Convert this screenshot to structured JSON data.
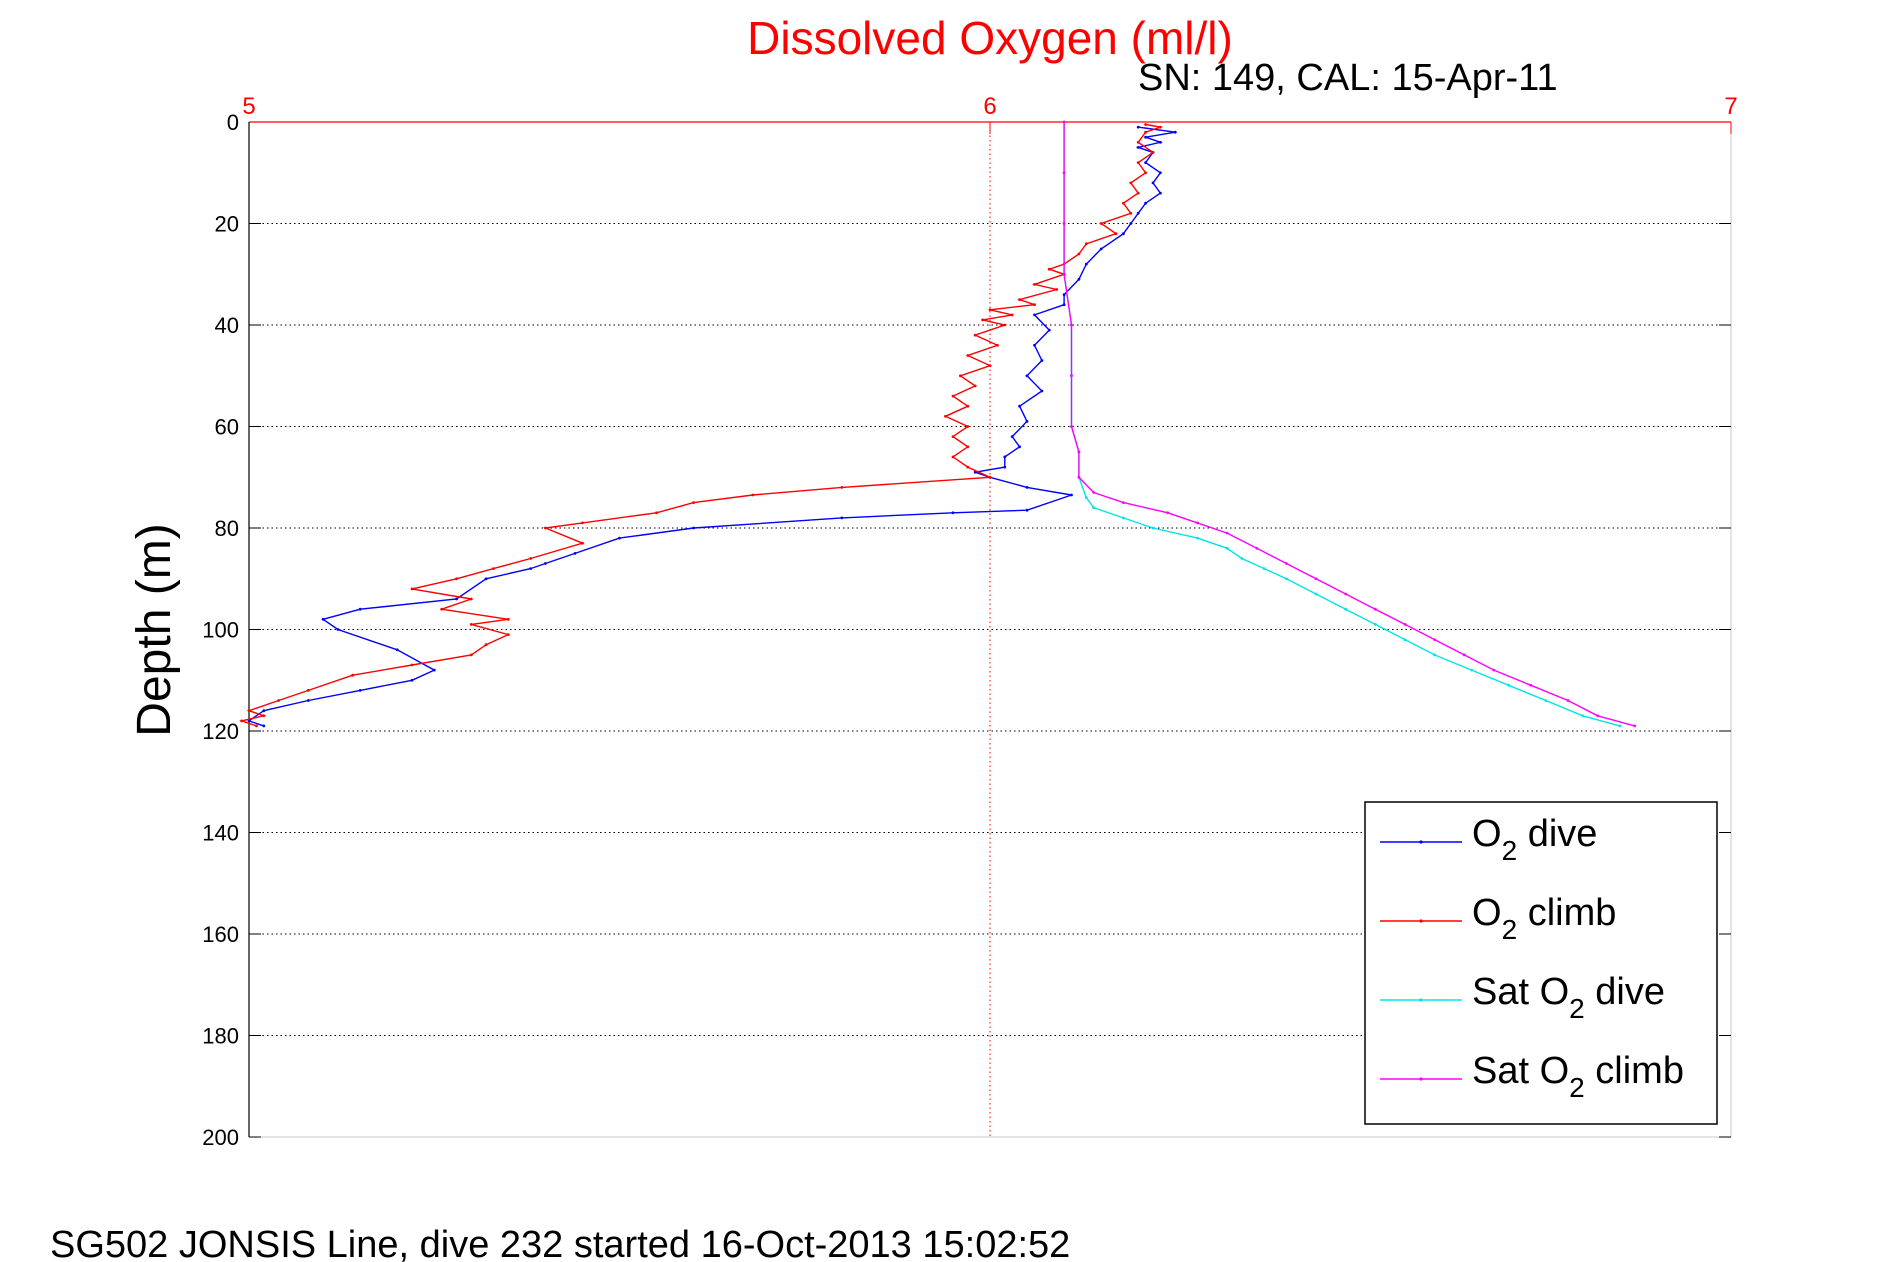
{
  "chart_data": {
    "type": "line",
    "title": "Dissolved Oxygen (ml/l)",
    "subtitle": "SN: 149, CAL: 15-Apr-11",
    "caption": "SG502 JONSIS Line, dive 232 started 16-Oct-2013 15:02:52",
    "xlabel": "",
    "ylabel": "Depth (m)",
    "xlim": [
      5,
      7
    ],
    "ylim": [
      0,
      200
    ],
    "y_reversed": true,
    "x_axis_position": "top",
    "xticks": [
      "5",
      "6",
      "7"
    ],
    "yticks": [
      "0",
      "20",
      "40",
      "60",
      "80",
      "100",
      "120",
      "140",
      "160",
      "180",
      "200"
    ],
    "grid": true,
    "legend_position": "bottom-right",
    "colors": {
      "title": "#ff0000",
      "x_axis": "#ff0000",
      "o2_dive": "#0000ff",
      "o2_climb": "#ff0000",
      "sat_dive": "#00e5e5",
      "sat_climb": "#ff00ff"
    },
    "series": [
      {
        "name": "O2 dive",
        "legend_main": "O",
        "legend_sub": "2",
        "legend_rest": " dive",
        "color": "#0000ff",
        "points": [
          [
            6.2,
            1
          ],
          [
            6.25,
            2
          ],
          [
            6.21,
            3
          ],
          [
            6.23,
            4
          ],
          [
            6.2,
            5
          ],
          [
            6.22,
            6
          ],
          [
            6.21,
            8
          ],
          [
            6.23,
            10
          ],
          [
            6.22,
            12
          ],
          [
            6.23,
            14
          ],
          [
            6.21,
            16
          ],
          [
            6.2,
            18
          ],
          [
            6.19,
            20
          ],
          [
            6.18,
            22
          ],
          [
            6.15,
            25
          ],
          [
            6.13,
            28
          ],
          [
            6.12,
            31
          ],
          [
            6.1,
            34
          ],
          [
            6.1,
            36
          ],
          [
            6.06,
            38
          ],
          [
            6.08,
            41
          ],
          [
            6.06,
            44
          ],
          [
            6.07,
            47
          ],
          [
            6.05,
            50
          ],
          [
            6.07,
            53
          ],
          [
            6.04,
            56
          ],
          [
            6.05,
            59
          ],
          [
            6.03,
            62
          ],
          [
            6.04,
            64
          ],
          [
            6.02,
            66
          ],
          [
            6.02,
            68
          ],
          [
            5.98,
            69
          ],
          [
            6.0,
            70
          ],
          [
            6.05,
            72
          ],
          [
            6.11,
            73.5
          ],
          [
            6.05,
            76.5
          ],
          [
            5.95,
            77
          ],
          [
            5.8,
            78
          ],
          [
            5.6,
            80
          ],
          [
            5.5,
            82
          ],
          [
            5.44,
            85
          ],
          [
            5.4,
            87
          ],
          [
            5.38,
            88
          ],
          [
            5.32,
            90
          ],
          [
            5.28,
            94
          ],
          [
            5.15,
            96
          ],
          [
            5.1,
            98
          ],
          [
            5.12,
            100
          ],
          [
            5.2,
            104
          ],
          [
            5.25,
            108
          ],
          [
            5.22,
            110
          ],
          [
            5.15,
            112
          ],
          [
            5.08,
            114
          ],
          [
            5.02,
            116
          ],
          [
            5.0,
            118
          ],
          [
            5.02,
            119
          ]
        ]
      },
      {
        "name": "O2 climb",
        "legend_main": "O",
        "legend_sub": "2",
        "legend_rest": " climb",
        "color": "#ff0000",
        "points": [
          [
            6.21,
            0.5
          ],
          [
            6.23,
            1
          ],
          [
            6.21,
            2
          ],
          [
            6.2,
            4
          ],
          [
            6.22,
            6
          ],
          [
            6.2,
            8
          ],
          [
            6.21,
            10
          ],
          [
            6.19,
            12
          ],
          [
            6.2,
            14
          ],
          [
            6.18,
            16
          ],
          [
            6.19,
            18
          ],
          [
            6.15,
            20
          ],
          [
            6.17,
            22
          ],
          [
            6.13,
            24
          ],
          [
            6.12,
            26
          ],
          [
            6.1,
            28
          ],
          [
            6.08,
            29
          ],
          [
            6.1,
            30
          ],
          [
            6.06,
            32
          ],
          [
            6.09,
            33
          ],
          [
            6.04,
            35
          ],
          [
            6.06,
            36
          ],
          [
            6.0,
            37
          ],
          [
            6.03,
            38
          ],
          [
            5.99,
            39
          ],
          [
            6.02,
            40
          ],
          [
            5.98,
            42
          ],
          [
            6.01,
            44
          ],
          [
            5.97,
            46
          ],
          [
            6.0,
            48
          ],
          [
            5.96,
            50
          ],
          [
            5.98,
            52
          ],
          [
            5.95,
            54
          ],
          [
            5.97,
            56
          ],
          [
            5.94,
            58
          ],
          [
            5.97,
            60
          ],
          [
            5.95,
            62
          ],
          [
            5.97,
            64
          ],
          [
            5.95,
            66
          ],
          [
            5.97,
            68
          ],
          [
            6.0,
            70
          ],
          [
            5.8,
            72
          ],
          [
            5.68,
            73.5
          ],
          [
            5.6,
            75
          ],
          [
            5.55,
            77
          ],
          [
            5.45,
            79
          ],
          [
            5.4,
            80
          ],
          [
            5.45,
            83
          ],
          [
            5.38,
            86
          ],
          [
            5.33,
            88
          ],
          [
            5.28,
            90
          ],
          [
            5.22,
            92
          ],
          [
            5.3,
            94
          ],
          [
            5.26,
            96
          ],
          [
            5.35,
            98
          ],
          [
            5.3,
            99
          ],
          [
            5.35,
            101
          ],
          [
            5.32,
            103
          ],
          [
            5.3,
            105
          ],
          [
            5.22,
            107
          ],
          [
            5.14,
            109
          ],
          [
            5.08,
            112
          ],
          [
            5.04,
            114
          ],
          [
            5.0,
            116
          ],
          [
            5.02,
            117
          ],
          [
            4.99,
            118
          ],
          [
            5.01,
            119
          ]
        ]
      },
      {
        "name": "Sat O2 dive",
        "legend_main": "Sat O",
        "legend_sub": "2",
        "legend_rest": " dive",
        "color": "#00e5e5",
        "points": [
          [
            6.1,
            0
          ],
          [
            6.1,
            10
          ],
          [
            6.1,
            20
          ],
          [
            6.1,
            30
          ],
          [
            6.11,
            40
          ],
          [
            6.11,
            50
          ],
          [
            6.11,
            60
          ],
          [
            6.12,
            65
          ],
          [
            6.12,
            70
          ],
          [
            6.13,
            74
          ],
          [
            6.14,
            76
          ],
          [
            6.18,
            78
          ],
          [
            6.22,
            80
          ],
          [
            6.28,
            82
          ],
          [
            6.32,
            84
          ],
          [
            6.34,
            86
          ],
          [
            6.37,
            88
          ],
          [
            6.4,
            90
          ],
          [
            6.44,
            93
          ],
          [
            6.48,
            96
          ],
          [
            6.52,
            99
          ],
          [
            6.56,
            102
          ],
          [
            6.6,
            105
          ],
          [
            6.65,
            108
          ],
          [
            6.7,
            111
          ],
          [
            6.75,
            114
          ],
          [
            6.8,
            117
          ],
          [
            6.85,
            119
          ]
        ]
      },
      {
        "name": "Sat O2 climb",
        "legend_main": "Sat O",
        "legend_sub": "2",
        "legend_rest": " climb",
        "color": "#ff00ff",
        "points": [
          [
            6.1,
            0
          ],
          [
            6.1,
            10
          ],
          [
            6.1,
            20
          ],
          [
            6.1,
            30
          ],
          [
            6.11,
            40
          ],
          [
            6.11,
            50
          ],
          [
            6.11,
            60
          ],
          [
            6.12,
            65
          ],
          [
            6.12,
            70
          ],
          [
            6.14,
            73
          ],
          [
            6.18,
            75
          ],
          [
            6.24,
            77
          ],
          [
            6.28,
            79
          ],
          [
            6.32,
            81
          ],
          [
            6.36,
            84
          ],
          [
            6.4,
            87
          ],
          [
            6.44,
            90
          ],
          [
            6.48,
            93
          ],
          [
            6.52,
            96
          ],
          [
            6.56,
            99
          ],
          [
            6.6,
            102
          ],
          [
            6.64,
            105
          ],
          [
            6.68,
            108
          ],
          [
            6.73,
            111
          ],
          [
            6.78,
            114
          ],
          [
            6.82,
            117
          ],
          [
            6.87,
            119
          ]
        ]
      }
    ]
  }
}
